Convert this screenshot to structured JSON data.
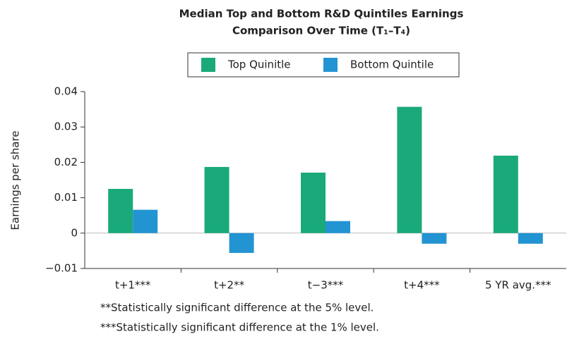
{
  "chart_data": {
    "type": "bar",
    "title": [
      "Median Top and Bottom R&D Quintiles Earnings",
      "Comparison Over Time (T₁–T₄)"
    ],
    "y_label": "Earnings per share",
    "categories": [
      "t+1***",
      "t+2**",
      "t−3***",
      "t+4***",
      "5 YR avg.***"
    ],
    "series": [
      {
        "name": "Top Quinitle",
        "color": "#1aa97b",
        "values": [
          0.0125,
          0.0187,
          0.0171,
          0.0357,
          0.0219
        ]
      },
      {
        "name": "Bottom Quintile",
        "color": "#2394d2",
        "values": [
          0.0066,
          -0.0056,
          0.0034,
          -0.003,
          -0.003
        ]
      }
    ],
    "ylim": [
      -0.01,
      0.04
    ],
    "yticks": [
      {
        "value": -0.01,
        "label": "−0.01"
      },
      0,
      0.01,
      0.02,
      0.03,
      0.04
    ],
    "legend": "top",
    "notes": [
      "**Statistically significant difference at the 5% level.",
      "***Statistically significant difference at the 1% level."
    ]
  }
}
